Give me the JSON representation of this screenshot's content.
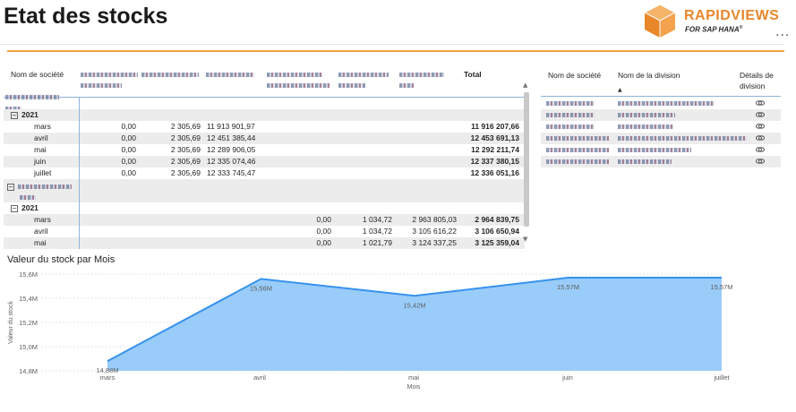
{
  "header": {
    "title": "Etat des stocks",
    "logo": {
      "brand_a": "RAPID",
      "brand_b": "VIEWS",
      "sub": "FOR SAP HANA",
      "mark": "®"
    },
    "more_menu": "..."
  },
  "colors": {
    "accent_orange": "#f2a241",
    "logo_orange": "#e8862a",
    "chart_fill": "#99ccf9",
    "chart_line": "#3792ed"
  },
  "matrix": {
    "header_company": "Nom de société",
    "header_total": "Total",
    "groups": [
      {
        "year": "2021",
        "rows": [
          {
            "month": "mars",
            "v1": "0,00",
            "v2": "2 305,69",
            "v3": "11 913 901,97",
            "v4": "",
            "v5": "",
            "v6": "",
            "total": "11 916 207,66"
          },
          {
            "month": "avril",
            "v1": "0,00",
            "v2": "2 305,69",
            "v3": "12 451 385,44",
            "v4": "",
            "v5": "",
            "v6": "",
            "total": "12 453 691,13"
          },
          {
            "month": "mai",
            "v1": "0,00",
            "v2": "2 305,69",
            "v3": "12 289 906,05",
            "v4": "",
            "v5": "",
            "v6": "",
            "total": "12 292 211,74"
          },
          {
            "month": "juin",
            "v1": "0,00",
            "v2": "2 305,69",
            "v3": "12 335 074,46",
            "v4": "",
            "v5": "",
            "v6": "",
            "total": "12 337 380,15"
          },
          {
            "month": "juillet",
            "v1": "0,00",
            "v2": "2 305,69",
            "v3": "12 333 745,47",
            "v4": "",
            "v5": "",
            "v6": "",
            "total": "12 336 051,16"
          }
        ]
      },
      {
        "year": "2021",
        "rows": [
          {
            "month": "mars",
            "v1": "",
            "v2": "",
            "v3": "",
            "v4": "0,00",
            "v5": "1 034,72",
            "v6": "2 963 805,03",
            "total": "2 964 839,75"
          },
          {
            "month": "avril",
            "v1": "",
            "v2": "",
            "v3": "",
            "v4": "0,00",
            "v5": "1 034,72",
            "v6": "3 105 616,22",
            "total": "3 106 650,94"
          },
          {
            "month": "mai",
            "v1": "",
            "v2": "",
            "v3": "",
            "v4": "0,00",
            "v5": "1 021,79",
            "v6": "3 124 337,25",
            "total": "3 125 359,04"
          }
        ]
      }
    ]
  },
  "division_table": {
    "header_company": "Nom de société",
    "header_division": "Nom de la division",
    "header_details": "Détails de division"
  },
  "chart_data": {
    "type": "area",
    "title": "Valeur du stock par Mois",
    "xlabel": "Mois",
    "ylabel": "Valeur du stock",
    "categories": [
      "mars",
      "avril",
      "mai",
      "juin",
      "juillet"
    ],
    "values": [
      14.88,
      15.56,
      15.42,
      15.57,
      15.57
    ],
    "data_labels": [
      "14,88M",
      "15,56M",
      "15,42M",
      "15,57M",
      "15,57M"
    ],
    "y_ticks": [
      "14,8M",
      "15,0M",
      "15,2M",
      "15,4M",
      "15,6M"
    ],
    "y_tick_values": [
      14.8,
      15.0,
      15.2,
      15.4,
      15.6
    ],
    "ylim": [
      14.8,
      15.6
    ],
    "grid": true
  }
}
